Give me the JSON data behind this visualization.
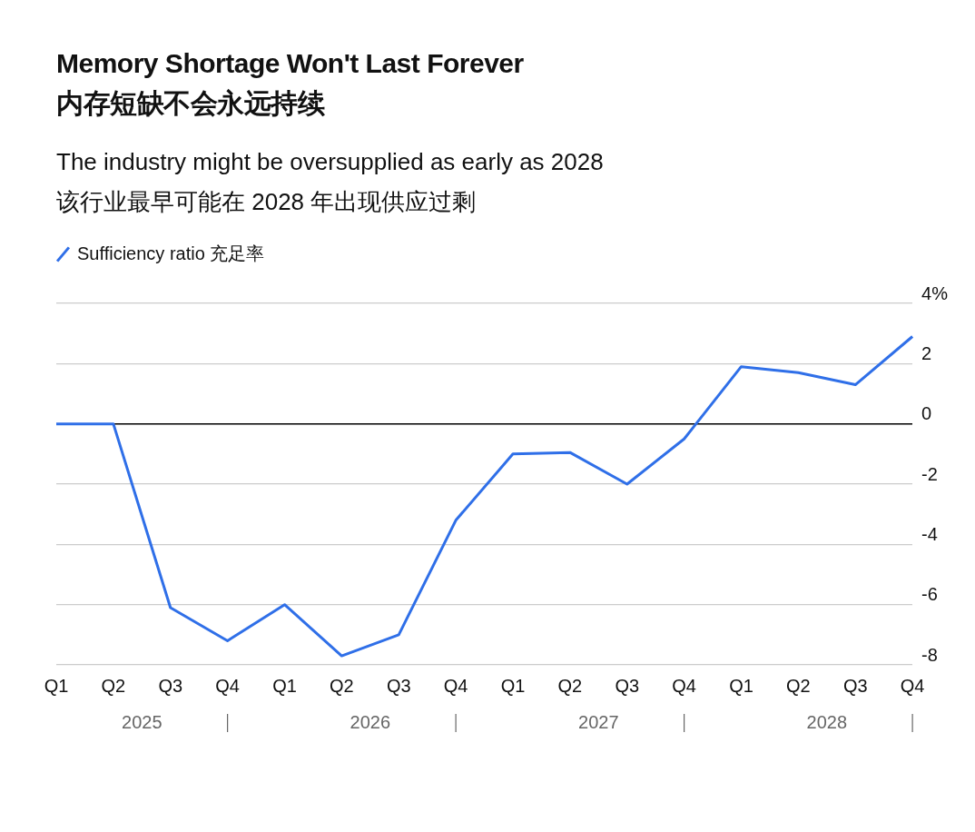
{
  "chart_data": {
    "type": "line",
    "title": "Memory Shortage Won't Last Forever\n内存短缺不会永远持续",
    "subtitle": "The industry might be oversupplied as early as 2028\n该行业最早可能在 2028 年出现供应过剩",
    "categories": [
      "Q1",
      "Q2",
      "Q3",
      "Q4",
      "Q1",
      "Q2",
      "Q3",
      "Q4",
      "Q1",
      "Q2",
      "Q3",
      "Q4",
      "Q1",
      "Q2",
      "Q3",
      "Q4"
    ],
    "series": [
      {
        "name": "Sufficiency ratio  充足率",
        "color": "#2f6fe8",
        "values": [
          0,
          0,
          -6.1,
          -7.2,
          -6.0,
          -7.7,
          -7.0,
          -3.2,
          -1.0,
          -0.95,
          -2.0,
          -0.5,
          1.9,
          1.7,
          1.3,
          2.9
        ]
      }
    ],
    "ylim": [
      -8,
      4
    ],
    "yticks": [
      {
        "value": 4,
        "label": "4%"
      },
      2,
      0,
      -2,
      -4,
      -6,
      -8
    ],
    "grid": "y",
    "legend": "top left",
    "annotations": [
      "2025",
      "2026",
      "2027",
      "2028"
    ]
  }
}
